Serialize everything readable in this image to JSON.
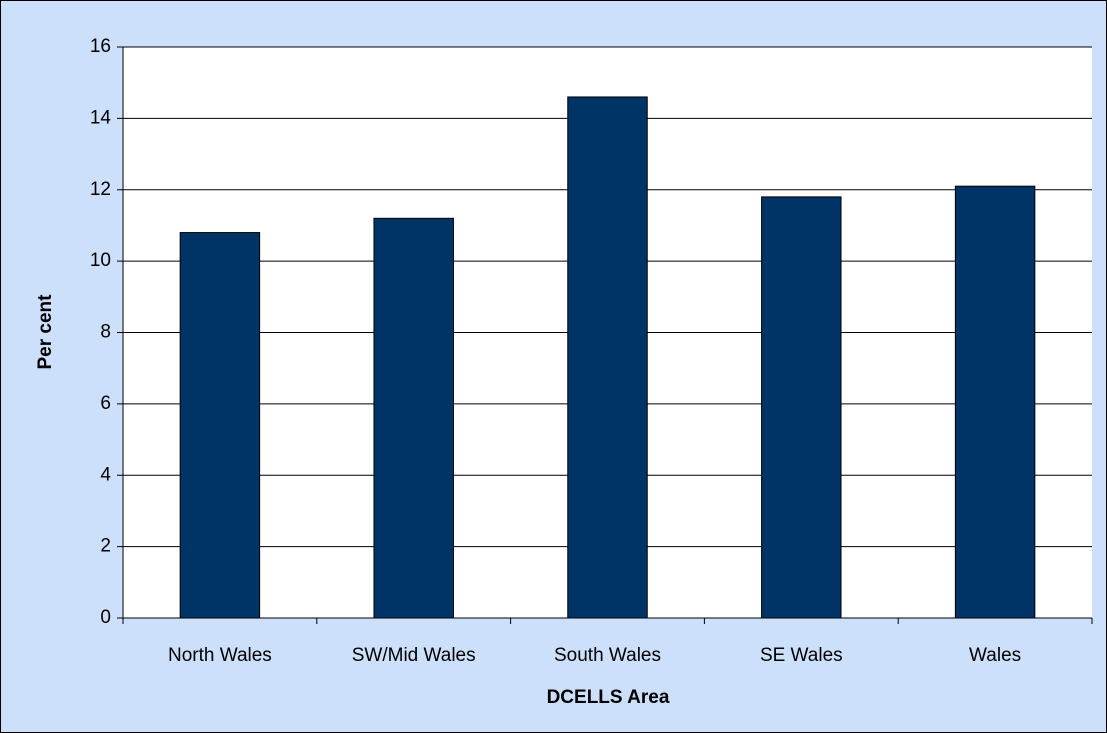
{
  "chart_data": {
    "type": "bar",
    "x_label": "DCELLS Area",
    "y_label": "Per cent",
    "categories": [
      "North Wales",
      "SW/Mid Wales",
      "South Wales",
      "SE Wales",
      "Wales"
    ],
    "values": [
      10.8,
      11.2,
      14.6,
      11.8,
      12.1
    ],
    "color": "#003366",
    "ylim": [
      0,
      16
    ],
    "yticks": [
      0,
      2,
      4,
      6,
      8,
      10,
      12,
      14,
      16
    ],
    "grid": true
  }
}
